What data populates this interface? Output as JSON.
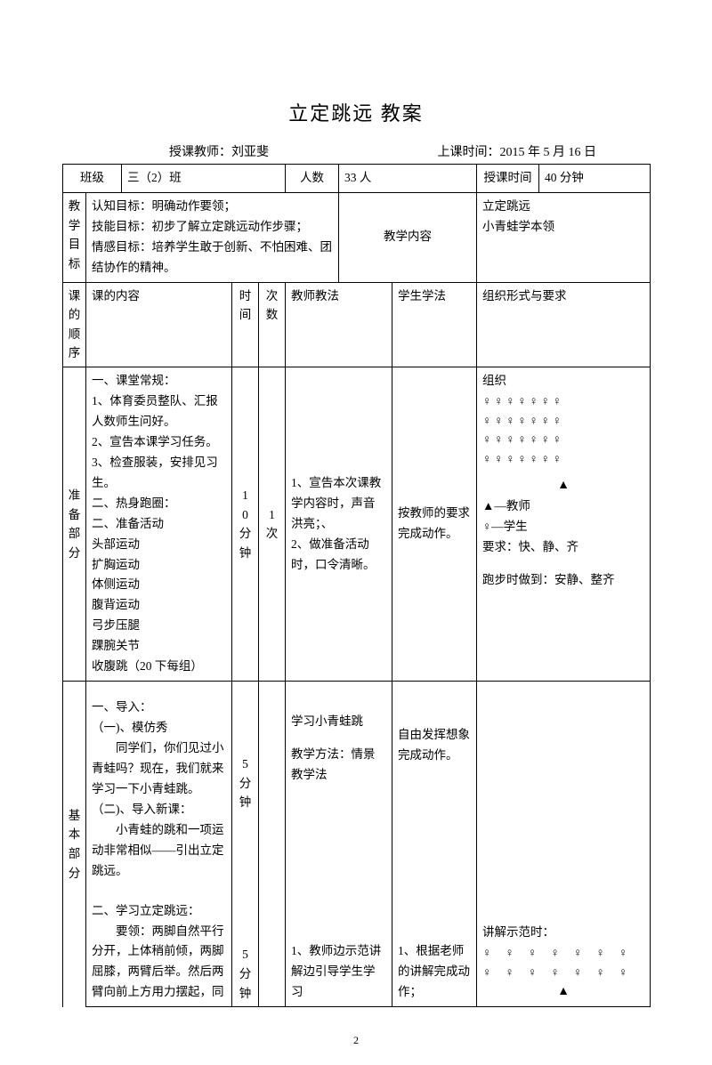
{
  "title": "立定跳远 教案",
  "meta": {
    "teacher_label": "授课教师：刘亚斐",
    "time_label": "上课时间：2015 年 5 月 16 日"
  },
  "row1": {
    "class_label": "班级",
    "class_value": "三（2）班",
    "count_label": "人数",
    "count_value": "33 人",
    "duration_label": "授课时间",
    "duration_value": "40 分钟"
  },
  "objectives": {
    "label": "教学目标",
    "l1": "认知目标：明确动作要领；",
    "l2": "技能目标：初步了解立定跳远动作步骤；",
    "l3": "情感目标：培养学生敢于创新、不怕困难、团结协作的精神。",
    "content_label": "教学内容",
    "content_l1": "立定跳远",
    "content_l2": "小青蛙学本领"
  },
  "header": {
    "label": "课的顺序",
    "c1": "课的内容",
    "c2": "时间",
    "c3": "次数",
    "c4": "教师教法",
    "c5": "学生学法",
    "c6": "组织形式与要求"
  },
  "prep": {
    "label": "准备部分",
    "content": {
      "l1": "一、课堂常规：",
      "l2": "1、体育委员整队、汇报人数师生问好。",
      "l3": "2、宣告本课学习任务。",
      "l4": "3、检查服装，安排见习生。",
      "l5": "二、热身跑圈：",
      "l6": "二、准备活动",
      "l7": "头部运动",
      "l8": "扩胸运动",
      "l9": "体侧运动",
      "l10": "腹背运动",
      "l11": "弓步压腿",
      "l12": "踝腕关节",
      "l13": "收腹跳（20 下每组）"
    },
    "time": "10分钟",
    "count": "1次",
    "teach": {
      "l1": "1、宣告本次课教学内容时，声音洪亮；、",
      "l2": "2、做准备活动时，口令清晰。"
    },
    "learn": "按教师的要求完成动作。",
    "org": {
      "l0": "组织",
      "row1": "♀♀♀♀♀♀♀",
      "row2": "♀♀♀♀♀♀♀",
      "row3": "♀♀♀♀♀♀♀",
      "row4": "♀♀♀♀♀♀♀",
      "tri": "▲",
      "l5": "▲—教师",
      "l6": "♀—学生",
      "l7": "要求：快、静、齐",
      "l8": "跑步时做到：安静、整齐"
    }
  },
  "basic": {
    "label": "基本部分",
    "intro": {
      "l1": "一、导入：",
      "l2": "（一)、模仿秀",
      "l3": "同学们，你们见过小青蛙吗？现在，我们就来学习一下小青蛙跳。",
      "l4": "（二)、导入新课：",
      "l5": "小青蛙的跳和一项运动非常相似——引出立定跳远。"
    },
    "intro_time": "5分钟",
    "intro_teach": {
      "l1": "学习小青蛙跳",
      "l2": "教学方法：情景教学法"
    },
    "intro_learn": "自由发挥想象完成动作。",
    "learn": {
      "l1": "二、学习立定跳远：",
      "l2": "要领：两脚自然平行分开，上体稍前倾，两脚屈膝，两臂后举。然后两臂向前上方用力摆起，同"
    },
    "learn_time": "5分钟",
    "learn_teach": "1、教师边示范讲解边引导学生学习",
    "learn_learn": "1、根据老师的讲解完成动作；",
    "learn_org": {
      "l1": "讲解示范时：",
      "row1": "♀ ♀ ♀ ♀ ♀ ♀ ♀",
      "row2": "♀ ♀ ♀ ♀ ♀ ♀ ♀",
      "tri": "▲"
    }
  },
  "page": "2"
}
